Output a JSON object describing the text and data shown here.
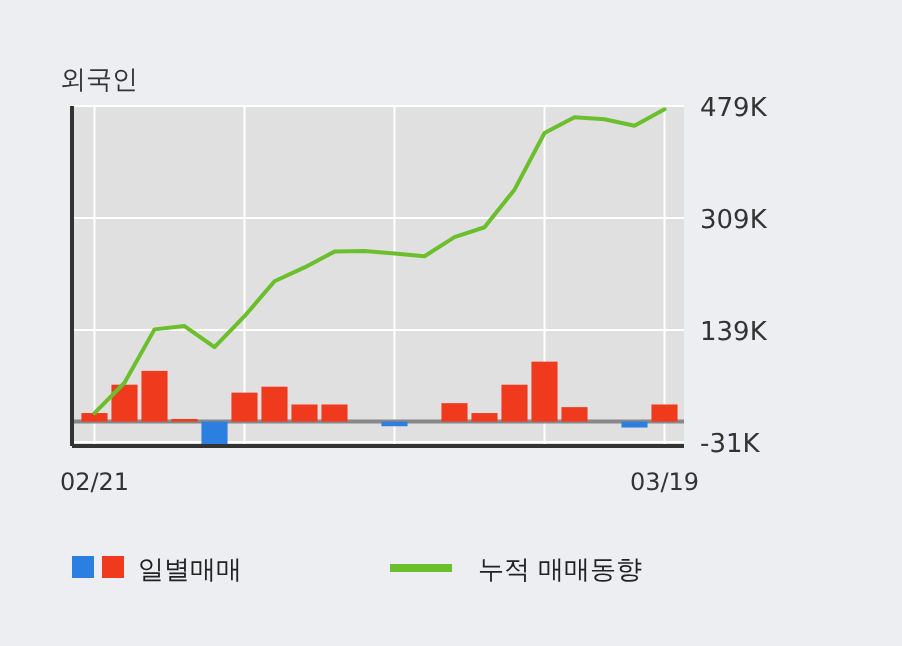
{
  "chart_data": {
    "type": "bar",
    "title": "외국인",
    "categories": [
      "02/21",
      null,
      null,
      null,
      null,
      null,
      null,
      null,
      null,
      null,
      null,
      null,
      null,
      null,
      null,
      null,
      null,
      null,
      null,
      "03/19"
    ],
    "series": [
      {
        "name": "일별매매",
        "colors": [
          "#f03a1e",
          "#f03a1e",
          "#f03a1e",
          "#f03a1e",
          "#2b7fe0",
          "#f03a1e",
          "#f03a1e",
          "#f03a1e",
          "#f03a1e",
          "#f03a1e",
          "#2b7fe0",
          "#f03a1e",
          "#f03a1e",
          "#f03a1e",
          "#f03a1e",
          "#f03a1e",
          "#f03a1e",
          "#f03a1e",
          "#2b7fe0",
          "#f03a1e"
        ],
        "values": [
          13,
          56,
          77,
          4,
          -36,
          44,
          53,
          26,
          26,
          0,
          -7,
          0,
          28,
          13,
          56,
          91,
          22,
          0,
          -9,
          26
        ]
      },
      {
        "name": "누적 매매동향",
        "type": "line",
        "color": "#6cbf2c",
        "values": [
          13,
          59,
          140,
          145,
          113,
          160,
          213,
          234,
          258,
          259,
          255,
          251,
          280,
          295,
          352,
          438,
          462,
          459,
          449,
          474
        ]
      }
    ],
    "ylim": [
      -37,
      479
    ],
    "yticks": [
      {
        "value": -31,
        "label": "-31K"
      },
      {
        "value": 139,
        "label": "139K"
      },
      {
        "value": 309,
        "label": "309K"
      },
      {
        "value": 479,
        "label": "479K"
      }
    ],
    "ref_lines": [
      {
        "axis": "y",
        "value": 0,
        "color": "#888888"
      }
    ],
    "grid": true,
    "legend": "bottom"
  }
}
